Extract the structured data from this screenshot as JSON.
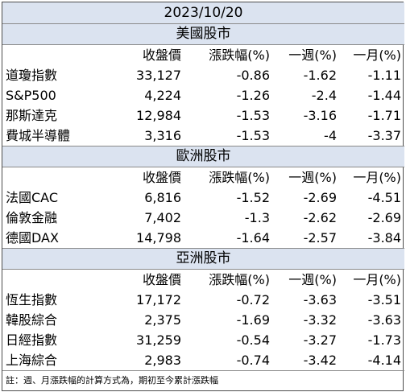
{
  "date": "2023/10/20",
  "columns": [
    "收盤價",
    "漲跌幅(%)",
    "一週(%)",
    "一月(%)"
  ],
  "regions": [
    {
      "name": "美國股市",
      "rows": [
        {
          "name": "道瓊指數",
          "close": "33,127",
          "change": "-0.86",
          "week": "-1.62",
          "month": "-1.11"
        },
        {
          "name": "S&P500",
          "close": "4,224",
          "change": "-1.26",
          "week": "-2.4",
          "month": "-1.44"
        },
        {
          "name": "那斯達克",
          "close": "12,984",
          "change": "-1.53",
          "week": "-3.16",
          "month": "-1.71"
        },
        {
          "name": "費城半導體",
          "close": "3,316",
          "change": "-1.53",
          "week": "-4",
          "month": "-3.37"
        }
      ]
    },
    {
      "name": "歐洲股市",
      "rows": [
        {
          "name": "法國CAC",
          "close": "6,816",
          "change": "-1.52",
          "week": "-2.69",
          "month": "-4.51"
        },
        {
          "name": "倫敦金融",
          "close": "7,402",
          "change": "-1.3",
          "week": "-2.62",
          "month": "-2.69"
        },
        {
          "name": "德國DAX",
          "close": "14,798",
          "change": "-1.64",
          "week": "-2.57",
          "month": "-3.84"
        }
      ]
    },
    {
      "name": "亞洲股市",
      "rows": [
        {
          "name": "恆生指數",
          "close": "17,172",
          "change": "-0.72",
          "week": "-3.63",
          "month": "-3.51"
        },
        {
          "name": "韓股綜合",
          "close": "2,375",
          "change": "-1.69",
          "week": "-3.32",
          "month": "-3.63"
        },
        {
          "name": "日經指數",
          "close": "31,259",
          "change": "-0.54",
          "week": "-3.27",
          "month": "-1.73"
        },
        {
          "name": "上海綜合",
          "close": "2,983",
          "change": "-0.74",
          "week": "-3.42",
          "month": "-4.14"
        }
      ]
    }
  ],
  "note": "註：週、月漲跌幅的計算方式為，期初至今累計漲跌幅",
  "colors": {
    "header_bg": "#dbe3f0",
    "border": "#4d4d4d"
  }
}
